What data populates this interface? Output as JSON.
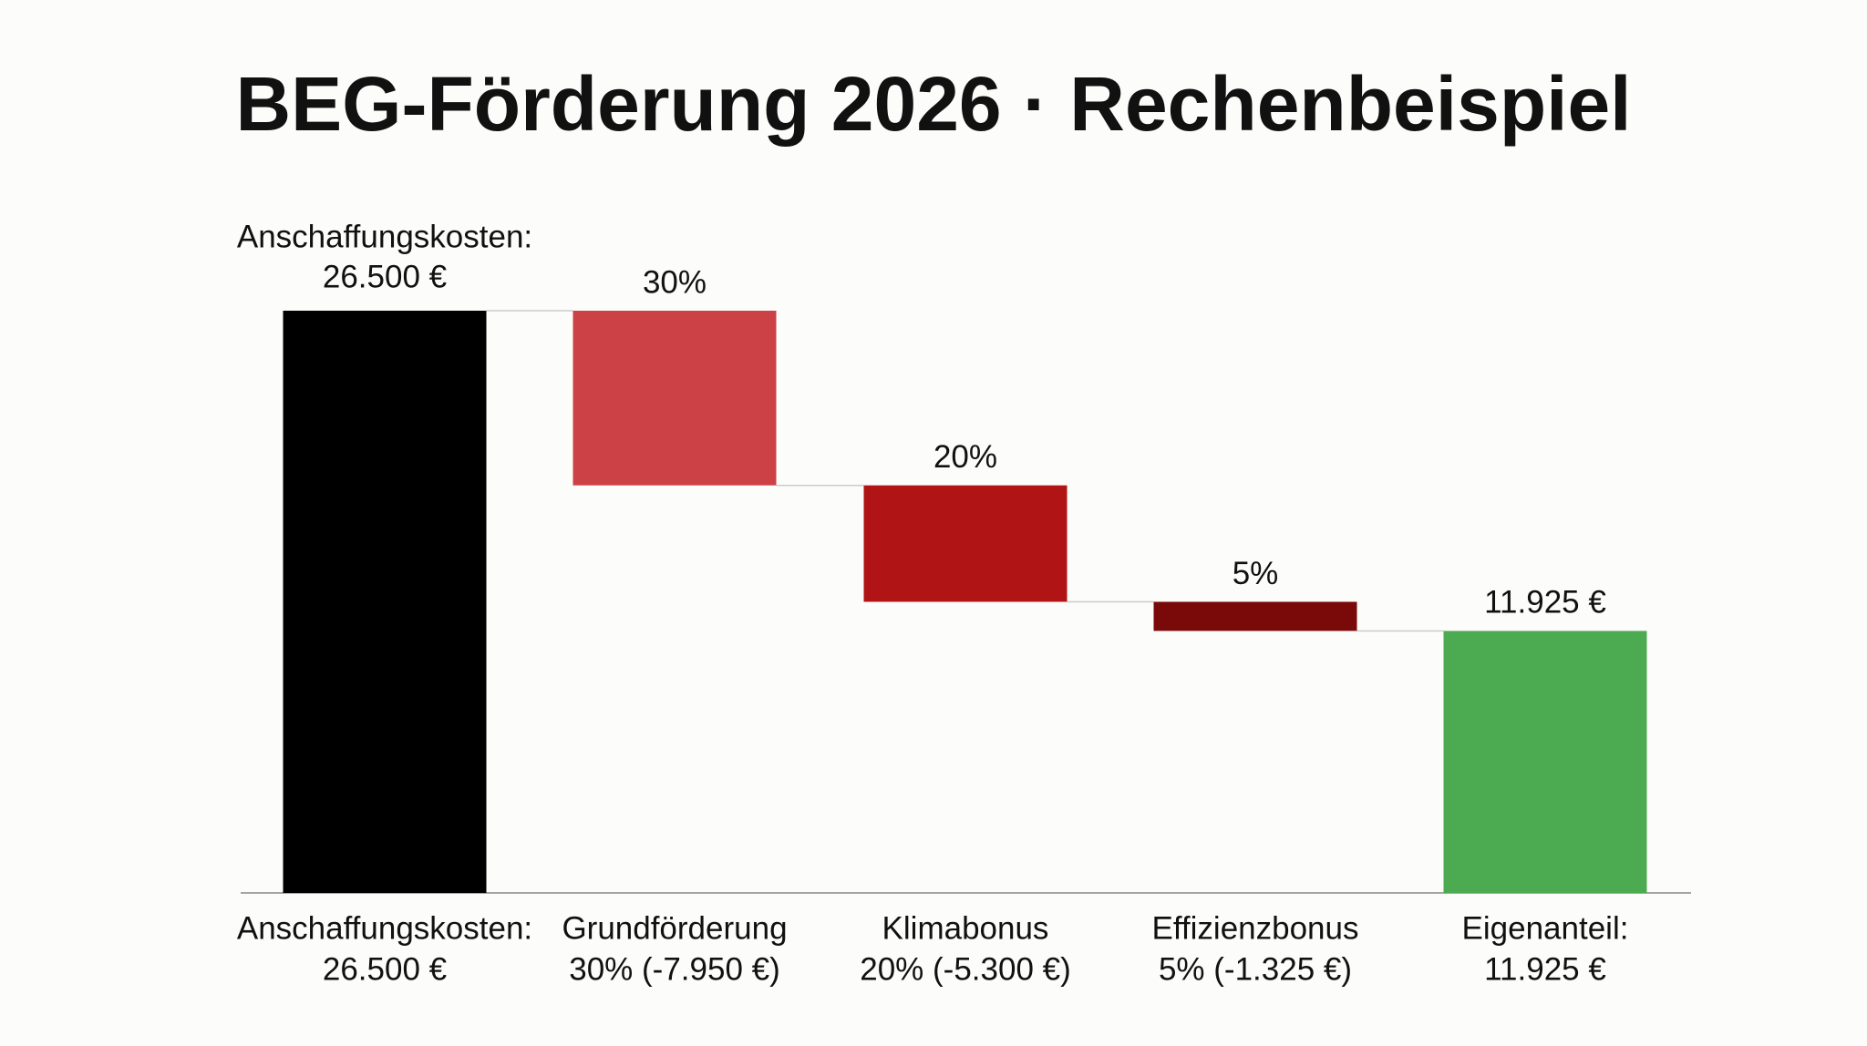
{
  "chart_data": {
    "type": "waterfall",
    "title": "BEG-Förderung 2026 · Rechenbeispiel",
    "categories": [
      [
        "Anschaffungskosten:",
        "26.500 €"
      ],
      [
        "Grundförderung",
        "30% (-7.950 €)"
      ],
      [
        "Klimabonus",
        "20% (-5.300 €)"
      ],
      [
        "Effizienzbonus",
        "5% (-1.325 €)"
      ],
      [
        "Eigenanteil:",
        "11.925 €"
      ]
    ],
    "values": [
      26500,
      -7950,
      -5300,
      -1325,
      11925
    ],
    "measure": [
      "absolute",
      "relative",
      "relative",
      "relative",
      "total"
    ],
    "bar_labels": [
      [
        "Anschaffungskosten:",
        "26.500 €"
      ],
      "30%",
      "20%",
      "5%",
      "11.925 €"
    ],
    "colors": [
      "#000000",
      "#cc4146",
      "#b01414",
      "#7a0a0a",
      "#4caa50"
    ],
    "ylim": [
      0,
      26500
    ]
  }
}
